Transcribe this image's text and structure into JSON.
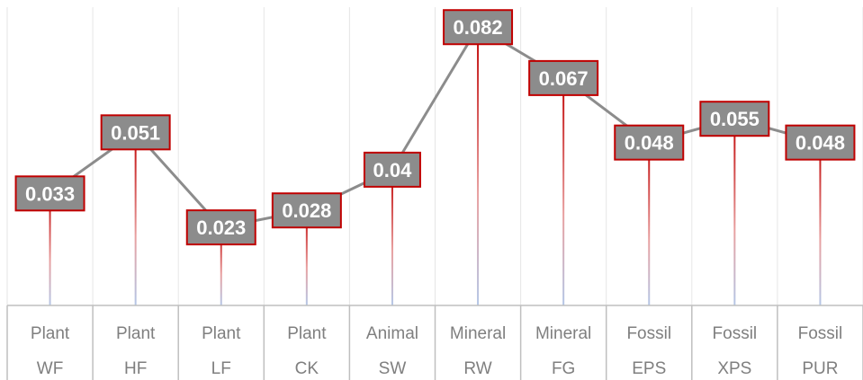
{
  "chart_data": {
    "type": "line",
    "categories": [
      "WF",
      "HF",
      "LF",
      "CK",
      "SW",
      "RW",
      "FG",
      "EPS",
      "XPS",
      "PUR"
    ],
    "groups": [
      "Plant",
      "Plant",
      "Plant",
      "Plant",
      "Animal",
      "Mineral",
      "Mineral",
      "Fossil",
      "Fossil",
      "Fossil"
    ],
    "series": [
      {
        "values": [
          0.033,
          0.051,
          0.023,
          0.028,
          0.04,
          0.082,
          0.067,
          0.048,
          0.055,
          0.048
        ]
      }
    ],
    "data_labels": [
      "0.033",
      "0.051",
      "0.023",
      "0.028",
      "0.04",
      "0.082",
      "0.067",
      "0.048",
      "0.055",
      "0.048"
    ],
    "title": "",
    "xlabel": "",
    "ylabel": "",
    "ylim": [
      0,
      0.09
    ],
    "grid": false,
    "legend": "none",
    "colors": {
      "line": "#8c8c8c",
      "drop_line": "#c00000",
      "drop_line_fade": "#b4c7e7",
      "label_fill": "#8c8c8c",
      "label_border": "#c00000",
      "axis": "#bfbfbf",
      "category_text": "#7f7f7f"
    }
  }
}
